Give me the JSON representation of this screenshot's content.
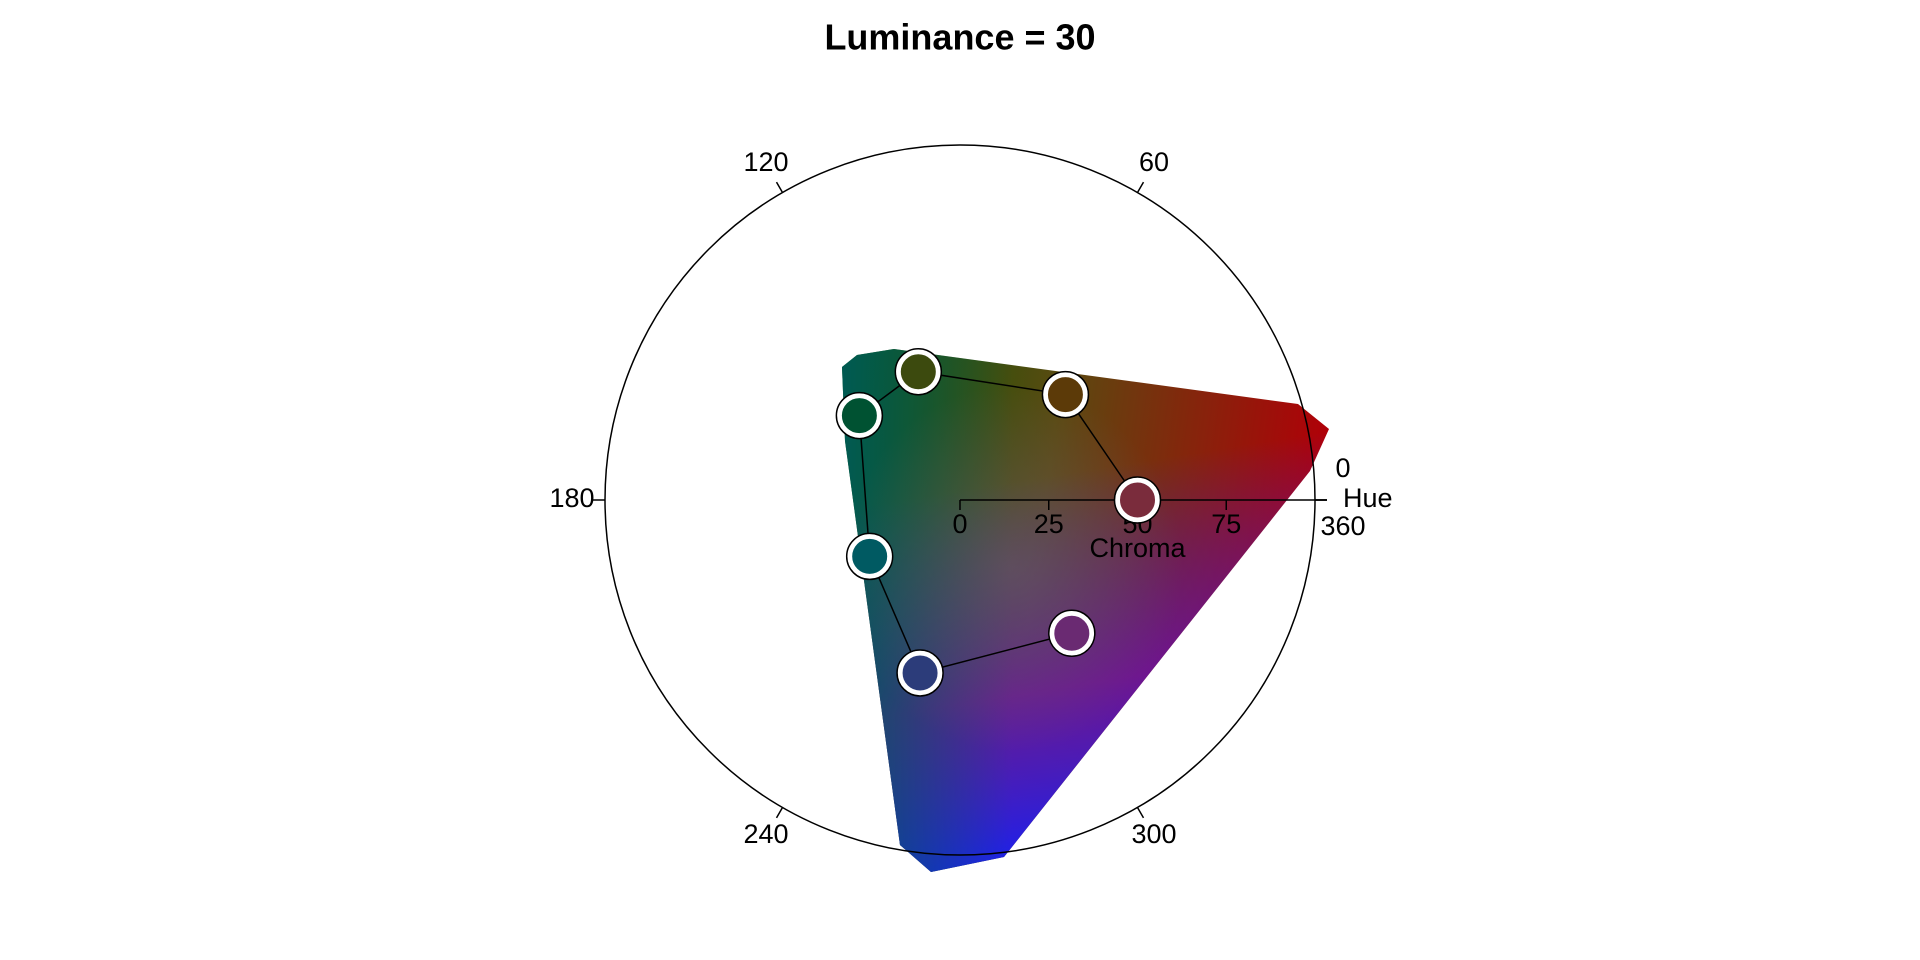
{
  "chart_data": {
    "type": "polar",
    "title": "Luminance = 30",
    "angle_label": "Hue",
    "radius_label": "Chroma",
    "rlim": [
      0,
      100
    ],
    "rticks": [
      0,
      25,
      50,
      75
    ],
    "angle_ticks": [
      0,
      60,
      120,
      180,
      240,
      300,
      360
    ],
    "points": {
      "hue": [
        0,
        45,
        108,
        140,
        212,
        257,
        310
      ],
      "chroma": [
        50,
        42,
        38,
        37,
        30,
        50,
        49
      ],
      "colors": [
        "#7a2c3c",
        "#5c3a08",
        "#3c4a0e",
        "#005232",
        "#005a62",
        "#2c3c7a",
        "#6a2a72"
      ]
    }
  }
}
